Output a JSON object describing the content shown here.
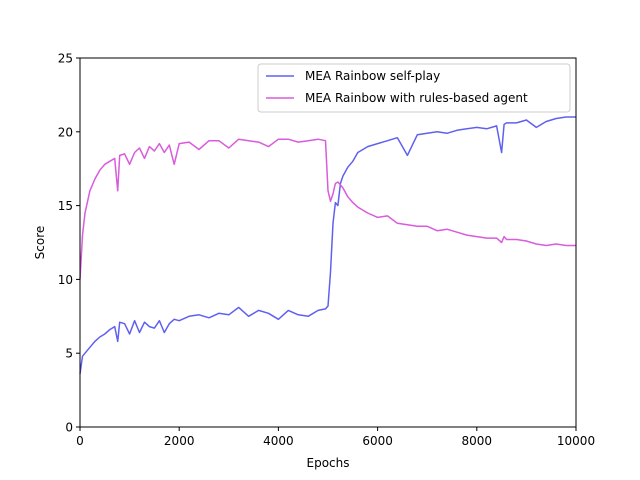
{
  "chart_data": {
    "type": "line",
    "xlabel": "Epochs",
    "ylabel": "Score",
    "xlim": [
      0,
      10000
    ],
    "ylim": [
      0,
      25
    ],
    "xticks": [
      0,
      2000,
      4000,
      6000,
      8000,
      10000
    ],
    "yticks": [
      0,
      5,
      10,
      15,
      20,
      25
    ],
    "grid": false,
    "legend_position": "top-right",
    "series": [
      {
        "name": "MEA Rainbow self-play",
        "color": "#6060f0",
        "x": [
          0,
          50,
          100,
          200,
          300,
          400,
          500,
          600,
          700,
          760,
          800,
          900,
          1000,
          1100,
          1200,
          1300,
          1400,
          1500,
          1600,
          1700,
          1800,
          1900,
          2000,
          2200,
          2400,
          2600,
          2800,
          3000,
          3200,
          3400,
          3600,
          3800,
          4000,
          4200,
          4400,
          4600,
          4800,
          4950,
          5000,
          5050,
          5100,
          5150,
          5200,
          5250,
          5300,
          5400,
          5500,
          5600,
          5800,
          6000,
          6200,
          6400,
          6600,
          6800,
          7000,
          7200,
          7400,
          7600,
          7800,
          8000,
          8200,
          8400,
          8500,
          8550,
          8600,
          8800,
          9000,
          9200,
          9400,
          9600,
          9800,
          10000
        ],
        "values": [
          3.6,
          4.8,
          5.0,
          5.4,
          5.8,
          6.1,
          6.3,
          6.6,
          6.8,
          5.8,
          7.1,
          7.0,
          6.3,
          7.2,
          6.4,
          7.1,
          6.8,
          6.7,
          7.2,
          6.4,
          7.0,
          7.3,
          7.2,
          7.5,
          7.6,
          7.4,
          7.7,
          7.6,
          8.1,
          7.5,
          7.9,
          7.7,
          7.3,
          7.9,
          7.6,
          7.5,
          7.9,
          8.0,
          8.2,
          10.5,
          13.8,
          15.2,
          15.0,
          16.5,
          17.0,
          17.6,
          18.0,
          18.6,
          19.0,
          19.2,
          19.4,
          19.6,
          18.4,
          19.8,
          19.9,
          20.0,
          19.9,
          20.1,
          20.2,
          20.3,
          20.2,
          20.4,
          18.6,
          20.5,
          20.6,
          20.6,
          20.8,
          20.3,
          20.7,
          20.9,
          21.0,
          21.0
        ]
      },
      {
        "name": "MEA Rainbow with rules-based agent",
        "color": "#d85cdc",
        "x": [
          0,
          50,
          100,
          200,
          300,
          400,
          500,
          600,
          700,
          760,
          800,
          900,
          1000,
          1100,
          1200,
          1300,
          1400,
          1500,
          1600,
          1700,
          1800,
          1900,
          2000,
          2200,
          2400,
          2600,
          2800,
          3000,
          3200,
          3400,
          3600,
          3800,
          4000,
          4200,
          4400,
          4600,
          4800,
          4950,
          5000,
          5050,
          5100,
          5150,
          5200,
          5250,
          5300,
          5400,
          5500,
          5600,
          5800,
          6000,
          6200,
          6400,
          6600,
          6800,
          7000,
          7200,
          7400,
          7600,
          7800,
          8000,
          8200,
          8400,
          8500,
          8550,
          8600,
          8800,
          9000,
          9200,
          9400,
          9600,
          9800,
          10000
        ],
        "values": [
          10.0,
          13.0,
          14.5,
          16.0,
          16.8,
          17.4,
          17.8,
          18.0,
          18.2,
          16.0,
          18.4,
          18.5,
          17.8,
          18.6,
          18.9,
          18.2,
          19.0,
          18.7,
          19.2,
          18.6,
          19.1,
          17.8,
          19.2,
          19.3,
          18.8,
          19.4,
          19.4,
          18.9,
          19.5,
          19.4,
          19.3,
          19.0,
          19.5,
          19.5,
          19.3,
          19.4,
          19.5,
          19.4,
          16.0,
          15.3,
          15.8,
          16.5,
          16.6,
          16.4,
          16.2,
          15.6,
          15.2,
          14.9,
          14.5,
          14.2,
          14.3,
          13.8,
          13.7,
          13.6,
          13.6,
          13.3,
          13.4,
          13.2,
          13.0,
          12.9,
          12.8,
          12.8,
          12.5,
          12.9,
          12.7,
          12.7,
          12.6,
          12.4,
          12.3,
          12.4,
          12.3,
          12.3
        ]
      }
    ]
  }
}
